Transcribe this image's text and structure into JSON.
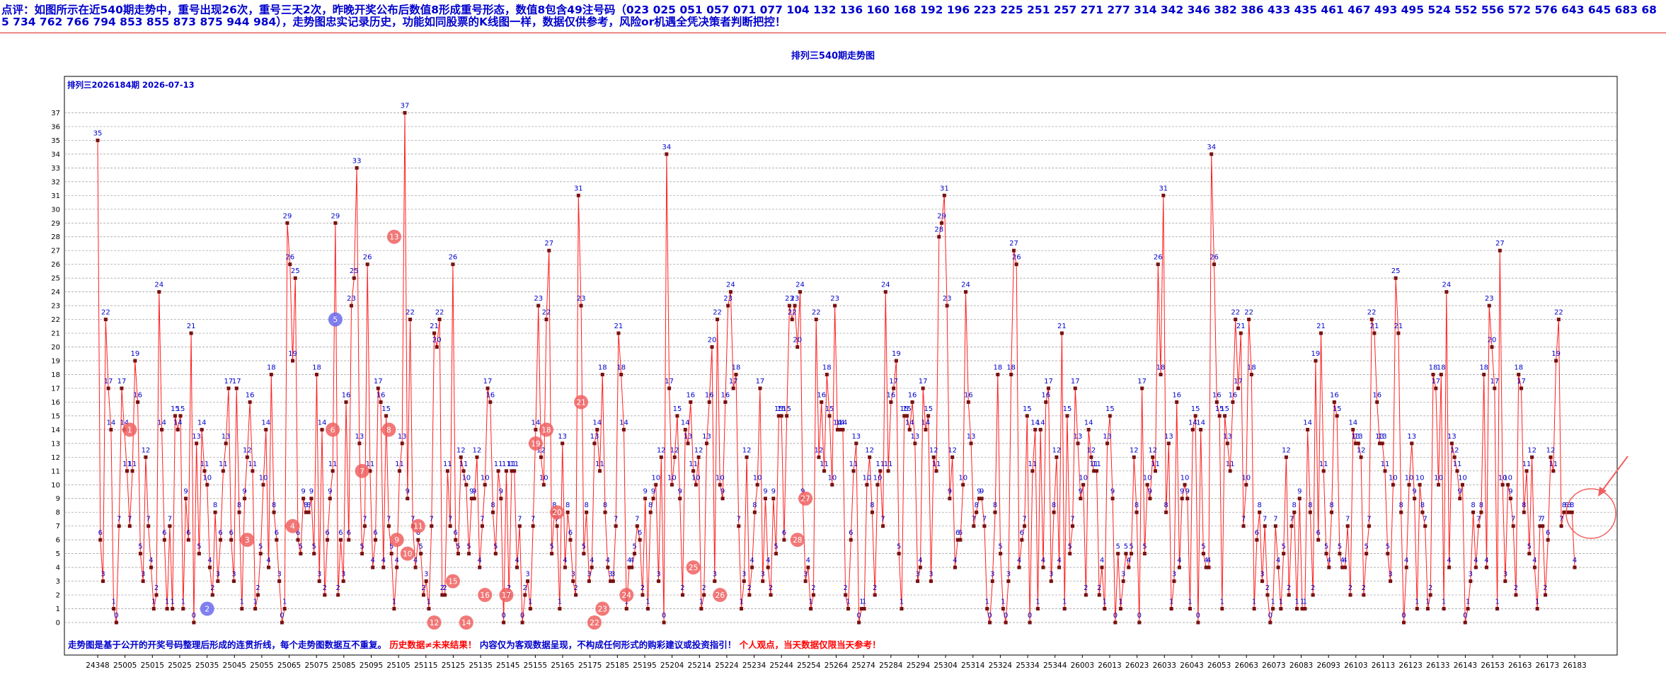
{
  "commentary": "点评：如图所示在近540期走势中，重号出现26次，重号三天2次，昨晚开奖公布后数值8形成重号形态，数值8包含49注号码（023 025 051 057 071 077 104 132 136 160 168 192 196 223 225 251 257 271 277 314 342 346 382 386 433 435 461 467 493 495 524 552 556 572 576 643 645 683 685 734 762 766 794 853 855 873 875 944 984），走势图忠实记录历史，功能如同股票的K线图一样，数据仅供参考，风险or机遇全凭决策者判断把控！",
  "colors": {
    "line": "#ff2020",
    "point": "#7a1010",
    "label": "#0000cc",
    "repeat": "#f06060",
    "grid": "#999999",
    "warning": "#ff0000"
  },
  "chart_data": {
    "type": "line",
    "title": "排列三540期走势图",
    "subtitle": "排列三2026184期 2026-07-13",
    "y_ticks": [
      0,
      1,
      2,
      3,
      4,
      5,
      6,
      7,
      8,
      9,
      10,
      11,
      12,
      13,
      14,
      15,
      16,
      17,
      18,
      19,
      20,
      21,
      22,
      23,
      24,
      25,
      26,
      27,
      28,
      29,
      30,
      31,
      32,
      33,
      34,
      35,
      36,
      37
    ],
    "ylim": [
      0,
      38
    ],
    "grid": true,
    "x_tick_labels": [
      "24348",
      "25005",
      "25015",
      "25025",
      "25035",
      "25045",
      "25055",
      "25065",
      "25075",
      "25085",
      "25095",
      "25105",
      "25115",
      "25125",
      "25135",
      "25145",
      "25155",
      "25165",
      "25175",
      "25185",
      "25195",
      "25204",
      "25214",
      "25224",
      "25234",
      "25244",
      "25254",
      "25264",
      "25274",
      "25284",
      "25294",
      "25304",
      "25314",
      "25324",
      "25334",
      "25344",
      "26003",
      "26013",
      "26023",
      "26033",
      "26043",
      "26053",
      "26063",
      "26073",
      "26083",
      "26093",
      "26103",
      "26113",
      "26123",
      "26133",
      "26143",
      "26153",
      "26163",
      "26173",
      "26183"
    ],
    "values": [
      35,
      6,
      3,
      22,
      17,
      14,
      1,
      0,
      7,
      17,
      14,
      11,
      7,
      11,
      19,
      16,
      5,
      3,
      12,
      7,
      4,
      1,
      2,
      24,
      14,
      6,
      1,
      7,
      1,
      15,
      14,
      15,
      1,
      9,
      6,
      21,
      0,
      13,
      5,
      14,
      11,
      10,
      4,
      2,
      8,
      3,
      6,
      11,
      13,
      17,
      6,
      3,
      17,
      8,
      1,
      9,
      12,
      16,
      11,
      1,
      2,
      5,
      10,
      14,
      4,
      18,
      8,
      6,
      3,
      0,
      1,
      29,
      26,
      19,
      25,
      6,
      5,
      9,
      8,
      8,
      9,
      5,
      18,
      3,
      14,
      2,
      6,
      9,
      11,
      29,
      2,
      6,
      3,
      16,
      6,
      23,
      25,
      33,
      13,
      5,
      7,
      26,
      11,
      4,
      6,
      17,
      16,
      4,
      15,
      7,
      5,
      1,
      4,
      11,
      13,
      37,
      9,
      22,
      7,
      4,
      6,
      5,
      2,
      3,
      1,
      7,
      21,
      20,
      22,
      2,
      2,
      11,
      7,
      26,
      6,
      5,
      12,
      11,
      10,
      5,
      9,
      9,
      12,
      4,
      7,
      10,
      17,
      16,
      8,
      5,
      11,
      9,
      0,
      11,
      2,
      11,
      11,
      4,
      7,
      0,
      2,
      3,
      1,
      7,
      14,
      23,
      12,
      10,
      22,
      27,
      5,
      8,
      7,
      1,
      13,
      4,
      8,
      6,
      3,
      2,
      31,
      23,
      5,
      8,
      3,
      4,
      13,
      14,
      11,
      18,
      8,
      4,
      3,
      3,
      7,
      21,
      18,
      14,
      1,
      4,
      4,
      5,
      7,
      6,
      2,
      9,
      1,
      8,
      9,
      10,
      3,
      12,
      0,
      34,
      17,
      10,
      12,
      15,
      9,
      2,
      14,
      13,
      16,
      11,
      10,
      12,
      1,
      2,
      13,
      16,
      20,
      3,
      22,
      10,
      9,
      16,
      23,
      24,
      17,
      18,
      7,
      1,
      3,
      12,
      2,
      4,
      8,
      10,
      17,
      3,
      9,
      4,
      2,
      9,
      5,
      15,
      15,
      6,
      15,
      23,
      22,
      23,
      20,
      24,
      9,
      3,
      4,
      1,
      2,
      22,
      12,
      16,
      11,
      18,
      15,
      10,
      23,
      14,
      14,
      14,
      2,
      1,
      6,
      11,
      13,
      0,
      1,
      1,
      10,
      12,
      8,
      2,
      10,
      11,
      7,
      24,
      11,
      16,
      17,
      19,
      5,
      1,
      15,
      15,
      14,
      16,
      13,
      3,
      4,
      17,
      14,
      15,
      3,
      12,
      11,
      28,
      29,
      31,
      23,
      9,
      12,
      4,
      6,
      6,
      10,
      24,
      16,
      13,
      7,
      8,
      9,
      9,
      7,
      1,
      0,
      3,
      8,
      18,
      5,
      1,
      0,
      3,
      18,
      27,
      26,
      4,
      6,
      7,
      15,
      0,
      11,
      14,
      1,
      14,
      4,
      16,
      17,
      3,
      8,
      12,
      4,
      21,
      1,
      15,
      5,
      7,
      17,
      13,
      9,
      10,
      2,
      14,
      12,
      11,
      11,
      2,
      4,
      1,
      13,
      15,
      9,
      0,
      5,
      1,
      3,
      5,
      4,
      5,
      12,
      8,
      0,
      17,
      5,
      10,
      9,
      12,
      11,
      26,
      18,
      31,
      8,
      13,
      1,
      3,
      16,
      4,
      9,
      10,
      9,
      1,
      14,
      15,
      0,
      14,
      5,
      4,
      4,
      34,
      26,
      16,
      15,
      1,
      15,
      13,
      11,
      16,
      22,
      17,
      21,
      7,
      10,
      22,
      18,
      1,
      6,
      8,
      3,
      7,
      2,
      0,
      1,
      7,
      4,
      1,
      5,
      12,
      2,
      7,
      8,
      1,
      9,
      1,
      1,
      14,
      8,
      2,
      19,
      6,
      21,
      11,
      5,
      4,
      8,
      16,
      15,
      5,
      4,
      4,
      7,
      2,
      14,
      13,
      13,
      12,
      2,
      5,
      7,
      22,
      21,
      16,
      13,
      13,
      11,
      5,
      3,
      10,
      25,
      21,
      8,
      0,
      4,
      10,
      13,
      9,
      1,
      10,
      8,
      7,
      1,
      2,
      18,
      17,
      10,
      18,
      1,
      24,
      4,
      13,
      12,
      11,
      9,
      10,
      0,
      1,
      3,
      8,
      4,
      7,
      8,
      18,
      4,
      23,
      20,
      17,
      1,
      27,
      10,
      3,
      10,
      9,
      7,
      2,
      18,
      17,
      8,
      11,
      5,
      12,
      4,
      1,
      7,
      7,
      2,
      6,
      12,
      11,
      19,
      22,
      7,
      8,
      8,
      8,
      8,
      4
    ],
    "markers": [
      {
        "i": 12,
        "y": 14,
        "n": "1",
        "color": "#f06060"
      },
      {
        "i": 41,
        "y": 1,
        "n": "2",
        "color": "#6a6aee"
      },
      {
        "i": 56,
        "y": 6,
        "n": "3",
        "color": "#f06060"
      },
      {
        "i": 73,
        "y": 7,
        "n": "4",
        "color": "#f06060"
      },
      {
        "i": 89,
        "y": 22,
        "n": "5",
        "color": "#6a6aee"
      },
      {
        "i": 88,
        "y": 14,
        "n": "6",
        "color": "#f06060"
      },
      {
        "i": 99,
        "y": 11,
        "n": "7",
        "color": "#f06060"
      },
      {
        "i": 109,
        "y": 14,
        "n": "8",
        "color": "#f06060"
      },
      {
        "i": 112,
        "y": 6,
        "n": "9",
        "color": "#f06060"
      },
      {
        "i": 116,
        "y": 5,
        "n": "10",
        "color": "#f06060"
      },
      {
        "i": 120,
        "y": 7,
        "n": "11",
        "color": "#f06060"
      },
      {
        "i": 126,
        "y": 0,
        "n": "12",
        "color": "#f06060"
      },
      {
        "i": 111,
        "y": 28,
        "n": "13",
        "color": "#f06060"
      },
      {
        "i": 138,
        "y": 0,
        "n": "14",
        "color": "#f06060"
      },
      {
        "i": 133,
        "y": 3,
        "n": "15",
        "color": "#f06060"
      },
      {
        "i": 145,
        "y": 2,
        "n": "16",
        "color": "#f06060"
      },
      {
        "i": 153,
        "y": 2,
        "n": "17",
        "color": "#f06060"
      },
      {
        "i": 168,
        "y": 14,
        "n": "18",
        "color": "#f06060"
      },
      {
        "i": 164,
        "y": 13,
        "n": "19",
        "color": "#f06060"
      },
      {
        "i": 172,
        "y": 8,
        "n": "20",
        "color": "#f06060"
      },
      {
        "i": 181,
        "y": 16,
        "n": "21",
        "color": "#f06060"
      },
      {
        "i": 186,
        "y": 0,
        "n": "22",
        "color": "#f06060"
      },
      {
        "i": 189,
        "y": 1,
        "n": "23",
        "color": "#f06060"
      },
      {
        "i": 198,
        "y": 2,
        "n": "24",
        "color": "#f06060"
      },
      {
        "i": 223,
        "y": 4,
        "n": "25",
        "color": "#f06060"
      },
      {
        "i": 233,
        "y": 2,
        "n": "26",
        "color": "#f06060"
      },
      {
        "i": 265,
        "y": 9,
        "n": "27",
        "color": "#f06060"
      },
      {
        "i": 262,
        "y": 6,
        "n": "28",
        "color": "#f06060"
      }
    ]
  },
  "footer": {
    "part1": "走势图是基于公开的开奖号码整理后形成的连贯折线，每个走势图数据互不重复。",
    "part2": "历史数据≠未来结果！",
    "part3": "内容仅为客观数据呈现，不构成任何形式的购彩建议或投资指引！",
    "part4": "个人观点，当天数据仅限当天参考！"
  }
}
